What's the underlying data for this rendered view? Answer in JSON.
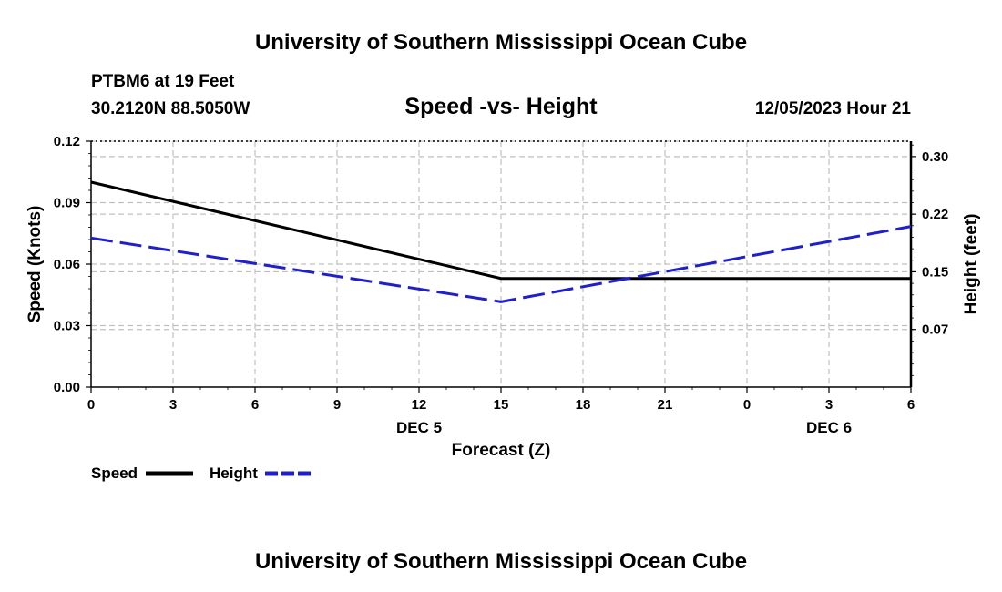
{
  "header": {
    "title": "University of Southern Mississippi Ocean Cube",
    "station": "PTBM6 at 19 Feet",
    "coords": "30.2120N  88.5050W",
    "datetime": "12/05/2023 Hour 21",
    "footer_title": "University of Southern Mississippi Ocean Cube"
  },
  "chart_data": {
    "type": "line",
    "title": "Speed -vs- Height",
    "xlabel": "Forecast (Z)",
    "ylabel": "Speed (Knots)",
    "y2label": "Height (feet)",
    "x": [
      0,
      3,
      6,
      9,
      12,
      15,
      18,
      21,
      24,
      27,
      30
    ],
    "x_tick_labels": [
      "0",
      "3",
      "6",
      "9",
      "12",
      "15",
      "18",
      "21",
      "0",
      "3",
      "6"
    ],
    "date_labels": [
      {
        "label": "DEC 5",
        "x": 12
      },
      {
        "label": "DEC 6",
        "x": 27
      }
    ],
    "xlim": [
      0,
      30
    ],
    "ylim": [
      0,
      0.12
    ],
    "y_ticks": [
      0,
      0.03,
      0.06,
      0.09,
      0.12
    ],
    "y_tick_labels": [
      "0.00",
      "0.03",
      "0.06",
      "0.09",
      "0.12"
    ],
    "y2lim": [
      0,
      0.32
    ],
    "y2_ticks": [
      0.075,
      0.15,
      0.225,
      0.3
    ],
    "y2_tick_labels": [
      "0.07",
      "0.15",
      "0.22",
      "0.30"
    ],
    "grid": true,
    "legend_position": "bottom-left",
    "series": [
      {
        "name": "Speed",
        "axis": "left",
        "style": "solid",
        "color": "#000000",
        "x": [
          0,
          15,
          30
        ],
        "values": [
          0.1,
          0.053,
          0.053
        ]
      },
      {
        "name": "Height",
        "axis": "right",
        "style": "dashed",
        "color": "#1f1fcc",
        "x": [
          0,
          15,
          30
        ],
        "values": [
          0.194,
          0.111,
          0.209
        ]
      }
    ]
  }
}
